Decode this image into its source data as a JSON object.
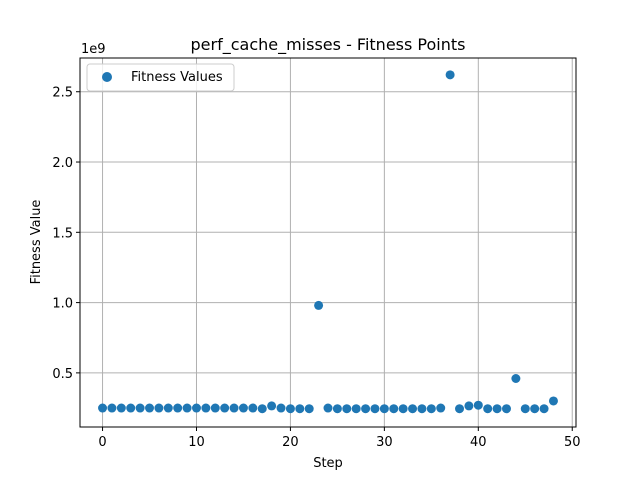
{
  "chart_data": {
    "type": "scatter",
    "title": "perf_cache_misses - Fitness Points",
    "xlabel": "Step",
    "ylabel": "Fitness Value",
    "y_offset_label": "1e9",
    "xlim": [
      -2.4,
      50.4
    ],
    "ylim": [
      115000000,
      2740000000
    ],
    "x_ticks": [
      0,
      10,
      20,
      30,
      40,
      50
    ],
    "x_tick_labels": [
      "0",
      "10",
      "20",
      "30",
      "40",
      "50"
    ],
    "y_ticks": [
      500000000,
      1000000000,
      1500000000,
      2000000000,
      2500000000
    ],
    "y_tick_labels": [
      "0.5",
      "1.0",
      "1.5",
      "2.0",
      "2.5"
    ],
    "grid": true,
    "legend_position": "top-left",
    "marker_color": "#1f77b4",
    "series": [
      {
        "name": "Fitness Values",
        "x": [
          0,
          1,
          2,
          3,
          4,
          5,
          6,
          7,
          8,
          9,
          10,
          11,
          12,
          13,
          14,
          15,
          16,
          17,
          18,
          19,
          20,
          21,
          22,
          23,
          24,
          25,
          26,
          27,
          28,
          29,
          30,
          31,
          32,
          33,
          34,
          35,
          36,
          37,
          38,
          39,
          40,
          41,
          42,
          43,
          44,
          45,
          46,
          47,
          48
        ],
        "y": [
          250000000,
          250000000,
          250000000,
          250000000,
          250000000,
          250000000,
          250000000,
          250000000,
          250000000,
          250000000,
          250000000,
          250000000,
          250000000,
          250000000,
          250000000,
          250000000,
          250000000,
          245000000,
          265000000,
          250000000,
          245000000,
          245000000,
          245000000,
          980000000,
          250000000,
          245000000,
          245000000,
          245000000,
          245000000,
          245000000,
          245000000,
          245000000,
          245000000,
          245000000,
          245000000,
          245000000,
          250000000,
          2620000000,
          245000000,
          265000000,
          270000000,
          245000000,
          245000000,
          245000000,
          460000000,
          245000000,
          245000000,
          245000000,
          300000000
        ]
      }
    ]
  }
}
